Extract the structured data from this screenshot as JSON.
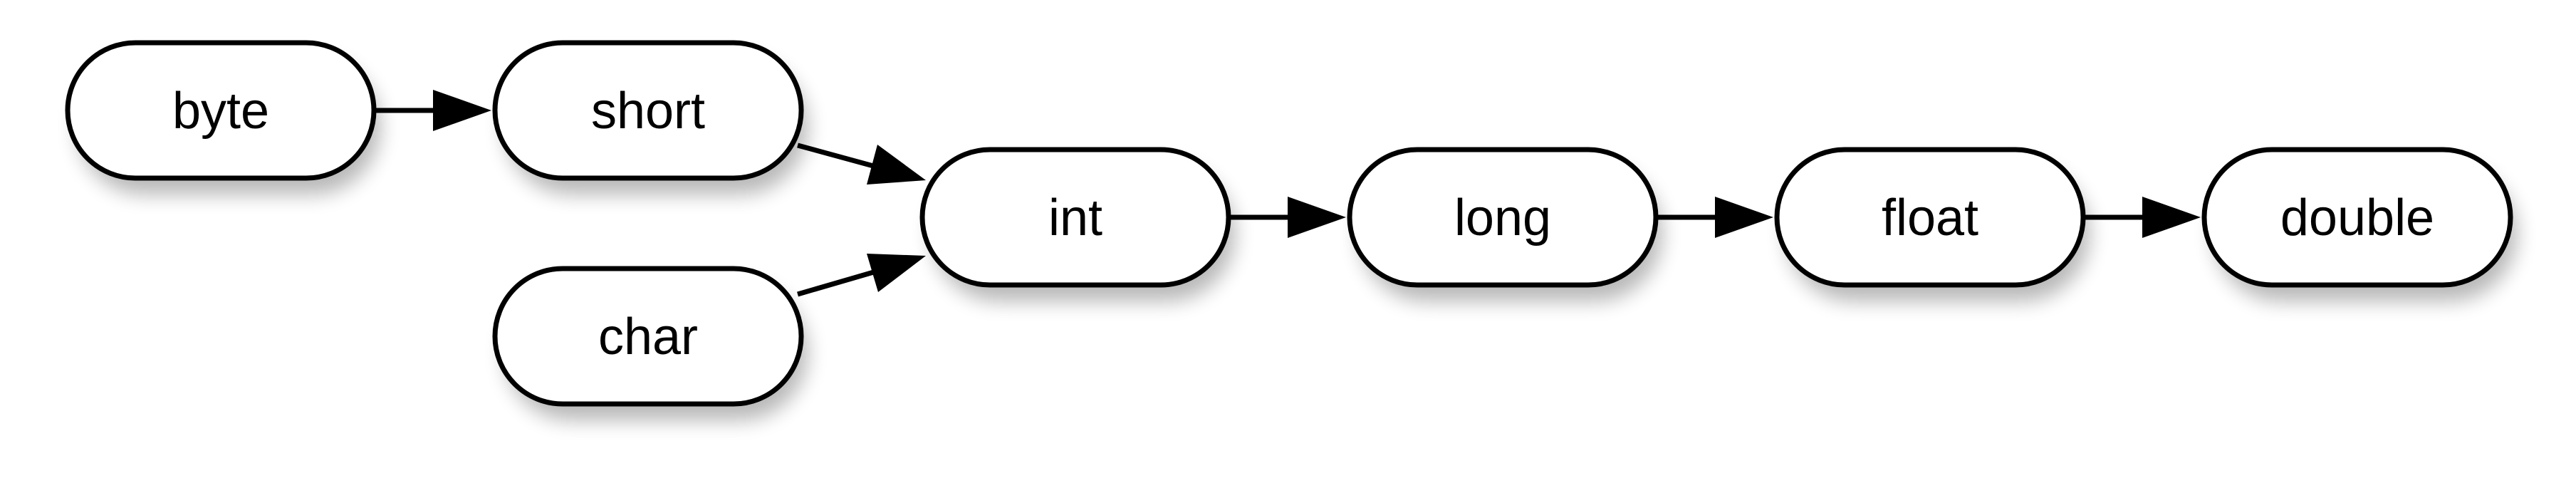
{
  "diagram": {
    "type": "flow",
    "nodes": {
      "byte": "byte",
      "short": "short",
      "char": "char",
      "int": "int",
      "long": "long",
      "float": "float",
      "double": "double"
    },
    "edges": [
      {
        "from": "byte",
        "to": "short"
      },
      {
        "from": "short",
        "to": "int"
      },
      {
        "from": "char",
        "to": "int"
      },
      {
        "from": "int",
        "to": "long"
      },
      {
        "from": "long",
        "to": "float"
      },
      {
        "from": "float",
        "to": "double"
      }
    ]
  }
}
